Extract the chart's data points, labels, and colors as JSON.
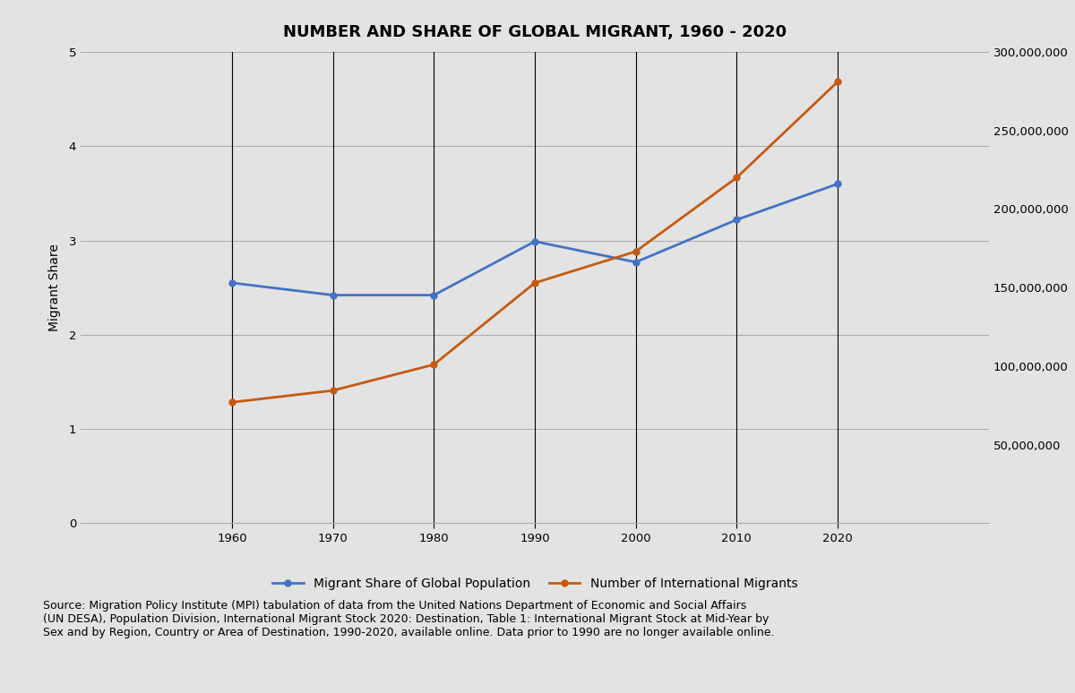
{
  "title": "NUMBER AND SHARE OF GLOBAL MIGRANT, 1960 - 2020",
  "years": [
    1960,
    1970,
    1980,
    1990,
    2000,
    2010,
    2020
  ],
  "migrant_share": [
    2.55,
    2.42,
    2.42,
    2.99,
    2.77,
    3.22,
    3.6
  ],
  "migrant_number": [
    77000000,
    84500000,
    101000000,
    153000000,
    173000000,
    220000000,
    281000000
  ],
  "share_color": "#4472C4",
  "number_color": "#C55A11",
  "left_ylim": [
    0,
    5
  ],
  "left_yticks": [
    0,
    1,
    2,
    3,
    4,
    5
  ],
  "right_ylim": [
    0,
    300000000
  ],
  "right_yticks": [
    50000000,
    100000000,
    150000000,
    200000000,
    250000000,
    300000000
  ],
  "ylabel_left": "Migrant Share",
  "legend_share": "Migrant Share of Global Population",
  "legend_number": "Number of International Migrants",
  "source_text": "Source: Migration Policy Institute (MPI) tabulation of data from the United Nations Department of Economic and Social Affairs\n(UN DESA), Population Division, International Migrant Stock 2020: Destination, Table 1: International Migrant Stock at Mid-Year by\nSex and by Region, Country or Area of Destination, 1990-2020, available online. Data prior to 1990 are no longer available online.",
  "bg_color": "#E3E3E3",
  "plot_bg_color": "#E3E3E3",
  "source_bg_color": "#FFFFFF",
  "grid_color": "#AAAAAA",
  "title_fontsize": 13,
  "label_fontsize": 10,
  "tick_fontsize": 9.5,
  "source_fontsize": 9,
  "marker_size": 5,
  "line_width": 2.0,
  "xlim": [
    1945,
    2035
  ]
}
